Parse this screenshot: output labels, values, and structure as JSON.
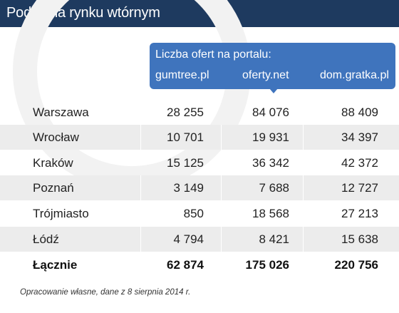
{
  "title": "Podaż na rynku wtórnym",
  "banner": {
    "heading": "Liczba ofert na portalu:",
    "columns": [
      "gumtree.pl",
      "oferty.net",
      "dom.gratka.pl"
    ]
  },
  "rows": [
    {
      "city": "Warszawa",
      "values": [
        "28 255",
        "84 076",
        "88 409"
      ]
    },
    {
      "city": "Wrocław",
      "values": [
        "10 701",
        "19 931",
        "34 397"
      ]
    },
    {
      "city": "Kraków",
      "values": [
        "15 125",
        "36 342",
        "42 372"
      ]
    },
    {
      "city": "Poznań",
      "values": [
        "3 149",
        "7 688",
        "12 727"
      ]
    },
    {
      "city": "Trójmiasto",
      "values": [
        "850",
        "18 568",
        "27 213"
      ]
    },
    {
      "city": "Łódź",
      "values": [
        "4 794",
        "8 421",
        "15 638"
      ]
    }
  ],
  "total": {
    "city": "Łącznie",
    "values": [
      "62 874",
      "175 026",
      "220 756"
    ]
  },
  "footnote": "Opracowanie własne, dane z 8 sierpnia 2014 r.",
  "colors": {
    "header": "#1e3a5f",
    "banner": "#3f74bd",
    "shade": "#ececec"
  }
}
